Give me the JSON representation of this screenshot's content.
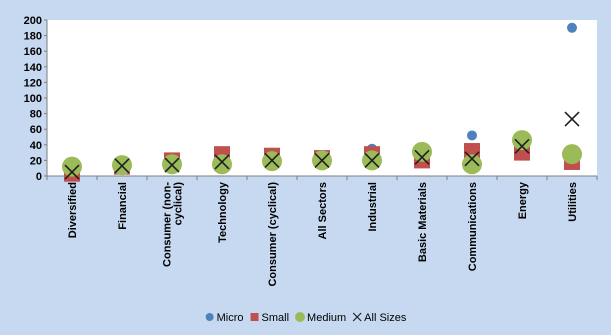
{
  "chart_data": {
    "type": "scatter",
    "title": "",
    "xlabel": "",
    "ylabel": "",
    "ylim": [
      0,
      200
    ],
    "yticks": [
      0,
      20,
      40,
      60,
      80,
      100,
      120,
      140,
      160,
      180,
      200
    ],
    "grid": false,
    "legend_position": "bottom",
    "categories": [
      "Diversified",
      "Financial",
      "Consumer (non-cyclical)",
      "Technology",
      "Consumer (cyclical)",
      "All Sectors",
      "Industrial",
      "Basic Materials",
      "Communications",
      "Energy",
      "Utilities"
    ],
    "category_lines": [
      [
        "Diversified"
      ],
      [
        "Financial"
      ],
      [
        "Consumer (non-",
        "cyclical)"
      ],
      [
        "Technology"
      ],
      [
        "Consumer (cyclical)"
      ],
      [
        "All Sectors"
      ],
      [
        "Industrial"
      ],
      [
        "Basic Materials"
      ],
      [
        "Communications"
      ],
      [
        "Energy"
      ],
      [
        "Utilities"
      ]
    ],
    "series": [
      {
        "name": "Micro",
        "marker": "circle-small",
        "color": "#4f81bd",
        "values": [
          8,
          13,
          14,
          16,
          18,
          19,
          35,
          17,
          52,
          45,
          190
        ]
      },
      {
        "name": "Small",
        "marker": "square",
        "color": "#c0504d",
        "values": [
          3,
          12,
          20,
          28,
          26,
          23,
          28,
          20,
          32,
          30,
          18
        ]
      },
      {
        "name": "Medium",
        "marker": "circle-large",
        "color": "#9bbb59",
        "values": [
          12,
          14,
          15,
          15,
          19,
          20,
          20,
          31,
          15,
          46,
          28
        ]
      },
      {
        "name": "All Sizes",
        "marker": "x",
        "color": "#1f1f1f",
        "values": [
          5,
          13,
          14,
          18,
          20,
          20,
          20,
          24,
          22,
          38,
          73
        ]
      }
    ]
  }
}
